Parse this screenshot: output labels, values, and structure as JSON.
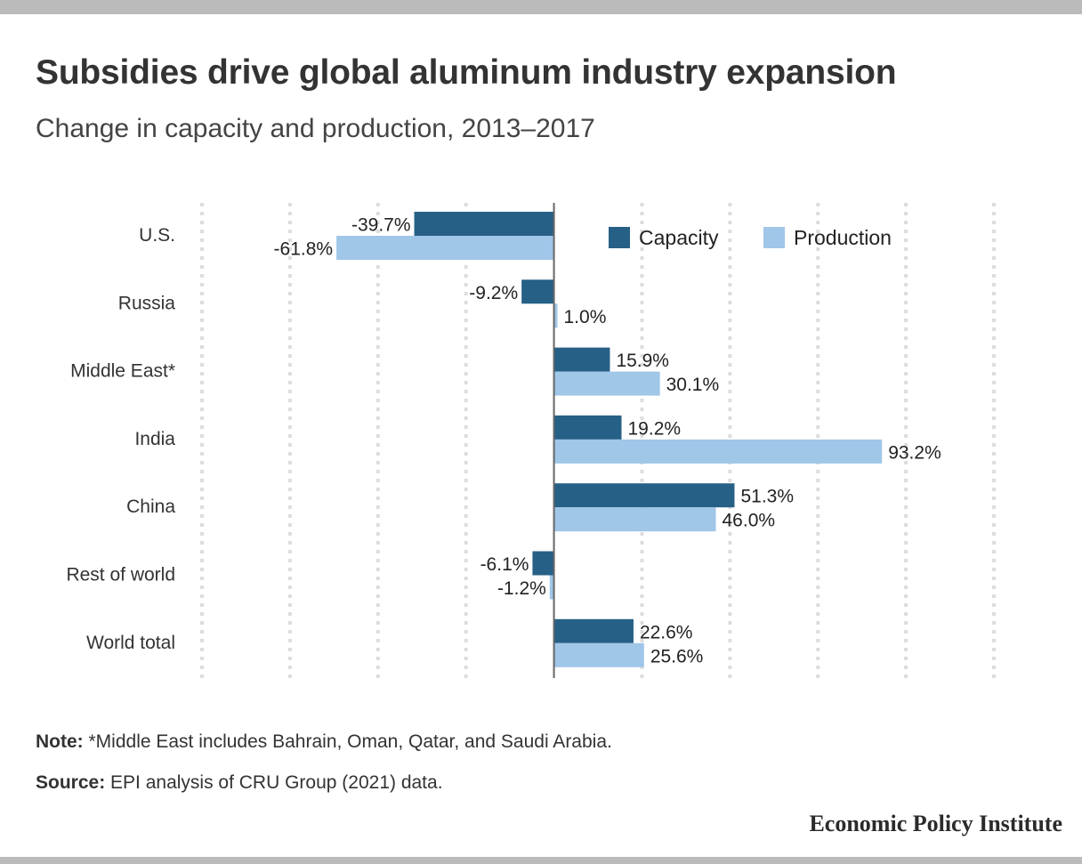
{
  "header": {
    "title": "Subsidies drive global aluminum industry expansion",
    "subtitle": "Change in capacity and production, 2013–2017"
  },
  "chart_data": {
    "type": "bar",
    "orientation": "horizontal",
    "categories": [
      "U.S.",
      "Russia",
      "Middle East*",
      "India",
      "China",
      "Rest of world",
      "World total"
    ],
    "series": [
      {
        "name": "Capacity",
        "color": "#266086",
        "values": [
          -39.7,
          -9.2,
          15.9,
          19.2,
          51.3,
          -6.1,
          22.6
        ],
        "labels": [
          "-39.7%",
          "-9.2%",
          "15.9%",
          "19.2%",
          "51.3%",
          "-6.1%",
          "22.6%"
        ]
      },
      {
        "name": "Production",
        "color": "#a0c6e8",
        "values": [
          -61.8,
          1.0,
          30.1,
          93.2,
          46.0,
          -1.2,
          25.6
        ],
        "labels": [
          "-61.8%",
          "1.0%",
          "30.1%",
          "93.2%",
          "46.0%",
          "-1.2%",
          "25.6%"
        ]
      }
    ],
    "xlim": [
      -100,
      125
    ],
    "grid": true,
    "legend": "top-right"
  },
  "footer": {
    "note_label": "Note:",
    "note_text": " *Middle East includes Bahrain, Oman, Qatar, and Saudi Arabia.",
    "source_label": "Source:",
    "source_text": " EPI analysis of CRU Group (2021) data.",
    "brand": "Economic Policy Institute"
  }
}
